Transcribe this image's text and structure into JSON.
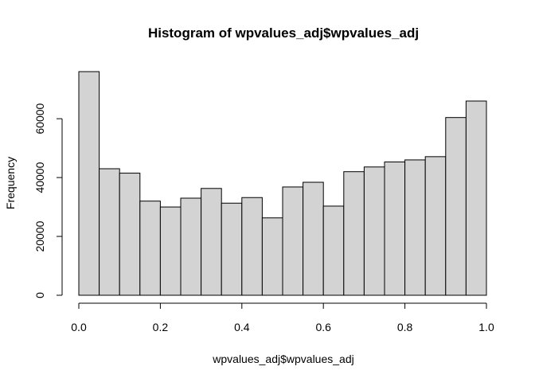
{
  "chart_data": {
    "type": "bar",
    "title": "Histogram of wpvalues_adj$wpvalues_adj",
    "xlabel": "wpvalues_adj$wpvalues_adj",
    "ylabel": "Frequency",
    "bin_edges": [
      0.0,
      0.05,
      0.1,
      0.15,
      0.2,
      0.25,
      0.3,
      0.35,
      0.4,
      0.45,
      0.5,
      0.55,
      0.6,
      0.65,
      0.7,
      0.75,
      0.8,
      0.85,
      0.9,
      0.95,
      1.0
    ],
    "values": [
      76000,
      43000,
      41500,
      32000,
      30000,
      33000,
      36300,
      31300,
      33200,
      26300,
      36800,
      38400,
      30300,
      42000,
      43600,
      45300,
      46000,
      47100,
      60400,
      66000
    ],
    "xlim": [
      0.0,
      1.0
    ],
    "ylim": [
      0,
      76000
    ],
    "x_ticks": [
      0.0,
      0.2,
      0.4,
      0.6,
      0.8,
      1.0
    ],
    "x_tick_labels": [
      "0.0",
      "0.2",
      "0.4",
      "0.6",
      "0.8",
      "1.0"
    ],
    "y_ticks": [
      0,
      20000,
      40000,
      60000
    ],
    "y_tick_labels": [
      "0",
      "20000",
      "40000",
      "60000"
    ],
    "bar_fill": "#d3d3d3",
    "bar_stroke": "#000000",
    "grid": false,
    "legend": "none"
  }
}
